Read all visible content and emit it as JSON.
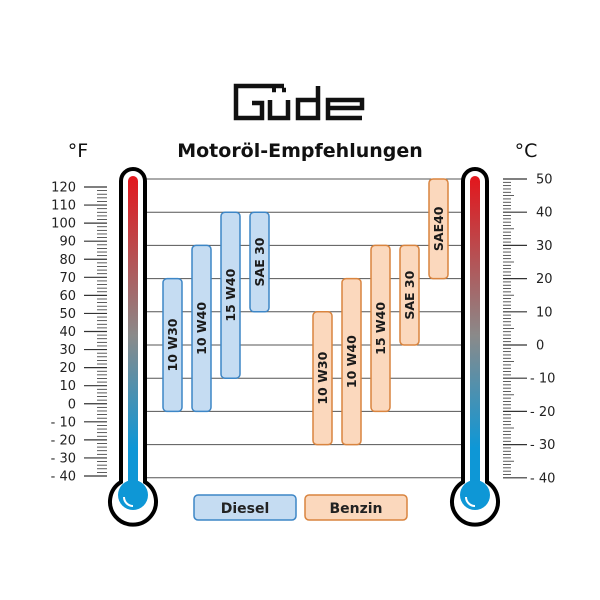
{
  "logo": "Güde",
  "title": "Motoröl-Empfehlungen",
  "left_unit": "°F",
  "right_unit": "°C",
  "chart_data": {
    "type": "range-bar",
    "title": "Motoröl-Empfehlungen",
    "value_unit": "°C",
    "left_axis": {
      "label": "°F",
      "ticks": [
        120,
        110,
        100,
        90,
        80,
        70,
        60,
        50,
        40,
        30,
        20,
        10,
        0,
        -10,
        -20,
        -30,
        -40
      ],
      "range": [
        -40,
        120
      ]
    },
    "right_axis": {
      "label": "°C",
      "ticks": [
        50,
        40,
        30,
        20,
        10,
        0,
        -10,
        -20,
        -30,
        -40
      ],
      "range": [
        -40,
        50
      ]
    },
    "grid": true,
    "legend_position": "bottom",
    "series": [
      {
        "name": "Diesel",
        "color": "#c5dcf2",
        "border": "#3d86c6",
        "bars": [
          {
            "label": "10 W30",
            "min": -20,
            "max": 20
          },
          {
            "label": "10 W40",
            "min": -20,
            "max": 30
          },
          {
            "label": "15 W40",
            "min": -10,
            "max": 40
          },
          {
            "label": "SAE 30",
            "min": 10,
            "max": 40
          }
        ]
      },
      {
        "name": "Benzin",
        "color": "#fbd8bd",
        "border": "#d9843f",
        "bars": [
          {
            "label": "10 W30",
            "min": -30,
            "max": 10
          },
          {
            "label": "10 W40",
            "min": -30,
            "max": 20
          },
          {
            "label": "15 W40",
            "min": -20,
            "max": 30
          },
          {
            "label": "SAE 30",
            "min": 0,
            "max": 30
          },
          {
            "label": "SAE40",
            "min": 20,
            "max": 50
          }
        ]
      }
    ]
  },
  "thermometer_colors": {
    "hot": "#e3161c",
    "mid": "#8a8a8a",
    "cold": "#0e97d6"
  }
}
